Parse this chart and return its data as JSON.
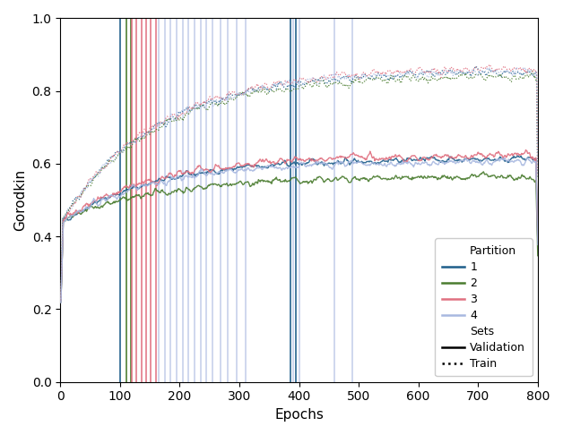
{
  "title": "",
  "xlabel": "Epochs",
  "ylabel": "Gorodkin",
  "xlim": [
    0,
    800
  ],
  "ylim": [
    0.0,
    1.0
  ],
  "yticks": [
    0.0,
    0.2,
    0.4,
    0.6,
    0.8,
    1.0
  ],
  "xticks": [
    0,
    100,
    200,
    300,
    400,
    500,
    600,
    700,
    800
  ],
  "colors": {
    "1": "#1f5f8b",
    "2": "#4a7c2f",
    "3": "#e07080",
    "4": "#a8b8e0"
  },
  "figsize": [
    6.28,
    4.86
  ],
  "dpi": 100,
  "seed": 42,
  "n_epochs": 800,
  "vlines_1": [
    100
  ],
  "vlines_2": [
    110,
    118
  ],
  "vlines_3": [
    120,
    128,
    136,
    144,
    152,
    160
  ],
  "vlines_4": [
    165,
    175,
    185,
    195,
    205,
    215,
    225,
    235,
    245,
    255,
    268,
    280,
    295,
    310,
    390,
    400,
    460,
    490
  ],
  "vlines_teal": [
    385,
    395
  ]
}
